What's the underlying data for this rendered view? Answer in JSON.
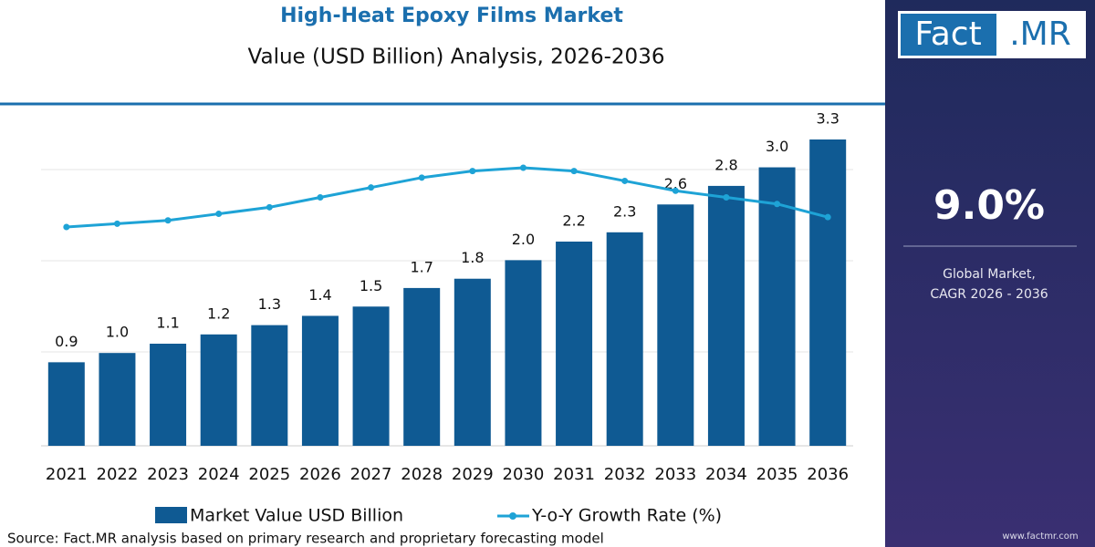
{
  "chart_data": {
    "type": "bar",
    "title": "High-Heat Epoxy Films Market",
    "subtitle": "Value (USD Billion) Analysis, 2026-2036",
    "categories": [
      "2021",
      "2022",
      "2023",
      "2024",
      "2025",
      "2026",
      "2027",
      "2028",
      "2029",
      "2030",
      "2031",
      "2032",
      "2033",
      "2034",
      "2035",
      "2036"
    ],
    "series": [
      {
        "name": "Market Value USD Billion",
        "type": "bar",
        "color": "#0f5a93",
        "values": [
          0.9,
          1.0,
          1.1,
          1.2,
          1.3,
          1.4,
          1.5,
          1.7,
          1.8,
          2.0,
          2.2,
          2.3,
          2.6,
          2.8,
          3.0,
          3.3
        ],
        "value_labels": [
          "0.9",
          "1.0",
          "1.1",
          "1.2",
          "1.3",
          "1.4",
          "1.5",
          "1.7",
          "1.8",
          "2.0",
          "2.2",
          "2.3",
          "2.6",
          "2.8",
          "3.0",
          "3.3"
        ]
      },
      {
        "name": "Y-o-Y Growth Rate (%)",
        "type": "line",
        "color": "#1ea3d6",
        "values": [
          8.0,
          8.1,
          8.2,
          8.4,
          8.6,
          8.9,
          9.2,
          9.5,
          9.7,
          9.8,
          9.7,
          9.4,
          9.1,
          8.9,
          8.7,
          8.3
        ]
      }
    ],
    "source": "Source: Fact.MR analysis based on primary research and proprietary forecasting model"
  },
  "panel": {
    "logo_left": "Fact",
    "logo_right": ".MR",
    "cagr": "9.0%",
    "cagr_caption_1": "Global Market,",
    "cagr_caption_2": "CAGR 2026 - 2036",
    "website": "www.factmr.com"
  }
}
